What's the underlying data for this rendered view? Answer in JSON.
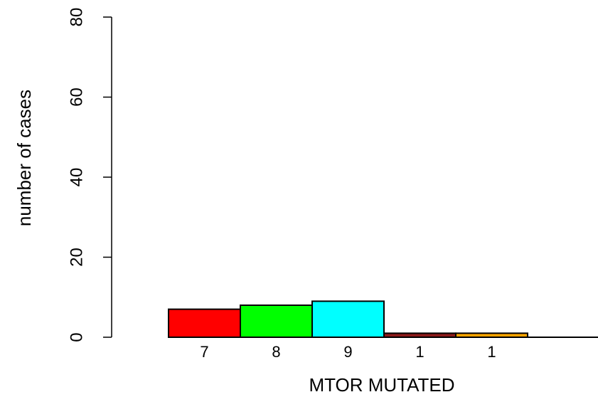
{
  "chart_data": {
    "type": "bar",
    "xlabel": "MTOR MUTATED",
    "ylabel": "number of cases",
    "ylim": [
      0,
      80
    ],
    "yticks": [
      0,
      20,
      40,
      60,
      80
    ],
    "grid": false,
    "bars": [
      {
        "label": "7",
        "value": 7,
        "color": "#ff0000"
      },
      {
        "label": "8",
        "value": 8,
        "color": "#00ff00"
      },
      {
        "label": "9",
        "value": 9,
        "color": "#00ffff"
      },
      {
        "label": "1",
        "value": 1,
        "color": "#8b1a1a"
      },
      {
        "label": "1",
        "value": 1,
        "color": "#ffa500"
      }
    ]
  }
}
